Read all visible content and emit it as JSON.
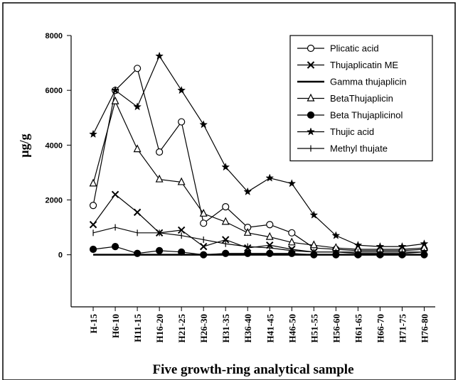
{
  "chart_data": {
    "type": "line",
    "y_label": "µg/g",
    "x_label": "Five growth-ring analytical sample",
    "categories": [
      "H-15",
      "H6-10",
      "H11-15",
      "H16-20",
      "H21-25",
      "H26-30",
      "H31-35",
      "H36-40",
      "H41-45",
      "H46-50",
      "H51-55",
      "H56-60",
      "H61-65",
      "H66-70",
      "H71-75",
      "H76-80"
    ],
    "ylim": [
      -1900,
      8000
    ],
    "yticks": [
      0,
      2000,
      4000,
      6000,
      8000
    ],
    "legend": "upper right",
    "series": [
      {
        "name": "Plicatic acid",
        "color": "#000000",
        "marker": "circle-open",
        "values": [
          1800,
          6000,
          6800,
          3750,
          4850,
          1150,
          1750,
          1000,
          1100,
          800,
          250,
          200,
          150,
          150,
          150,
          200
        ]
      },
      {
        "name": "Thujaplicatin ME",
        "color": "#000000",
        "marker": "x",
        "values": [
          1100,
          2200,
          1550,
          800,
          900,
          300,
          550,
          250,
          350,
          200,
          100,
          100,
          50,
          50,
          50,
          100
        ]
      },
      {
        "name": "Gamma thujaplicin",
        "color": "#000000",
        "marker": "none",
        "values": [
          0,
          0,
          0,
          0,
          0,
          0,
          0,
          0,
          0,
          0,
          0,
          0,
          0,
          0,
          0,
          0
        ]
      },
      {
        "name": "BetaThujaplicin",
        "color": "#000000",
        "marker": "triangle-open",
        "values": [
          2600,
          5600,
          3850,
          2750,
          2650,
          1500,
          1200,
          800,
          650,
          450,
          350,
          250,
          200,
          200,
          200,
          250
        ]
      },
      {
        "name": "Beta Thujaplicinol",
        "color": "#000000",
        "marker": "circle-filled",
        "values": [
          200,
          300,
          50,
          150,
          100,
          0,
          50,
          50,
          50,
          50,
          0,
          0,
          0,
          0,
          0,
          0
        ]
      },
      {
        "name": "Thujic acid",
        "color": "#000000",
        "marker": "star",
        "values": [
          4400,
          6000,
          5400,
          7250,
          6000,
          4750,
          3200,
          2300,
          2800,
          2600,
          1450,
          700,
          350,
          300,
          300,
          400
        ]
      },
      {
        "name": "Methyl thujate",
        "color": "#000000",
        "marker": "tick",
        "values": [
          800,
          1000,
          800,
          800,
          700,
          550,
          400,
          300,
          250,
          150,
          100,
          100,
          100,
          100,
          100,
          100
        ]
      }
    ]
  }
}
